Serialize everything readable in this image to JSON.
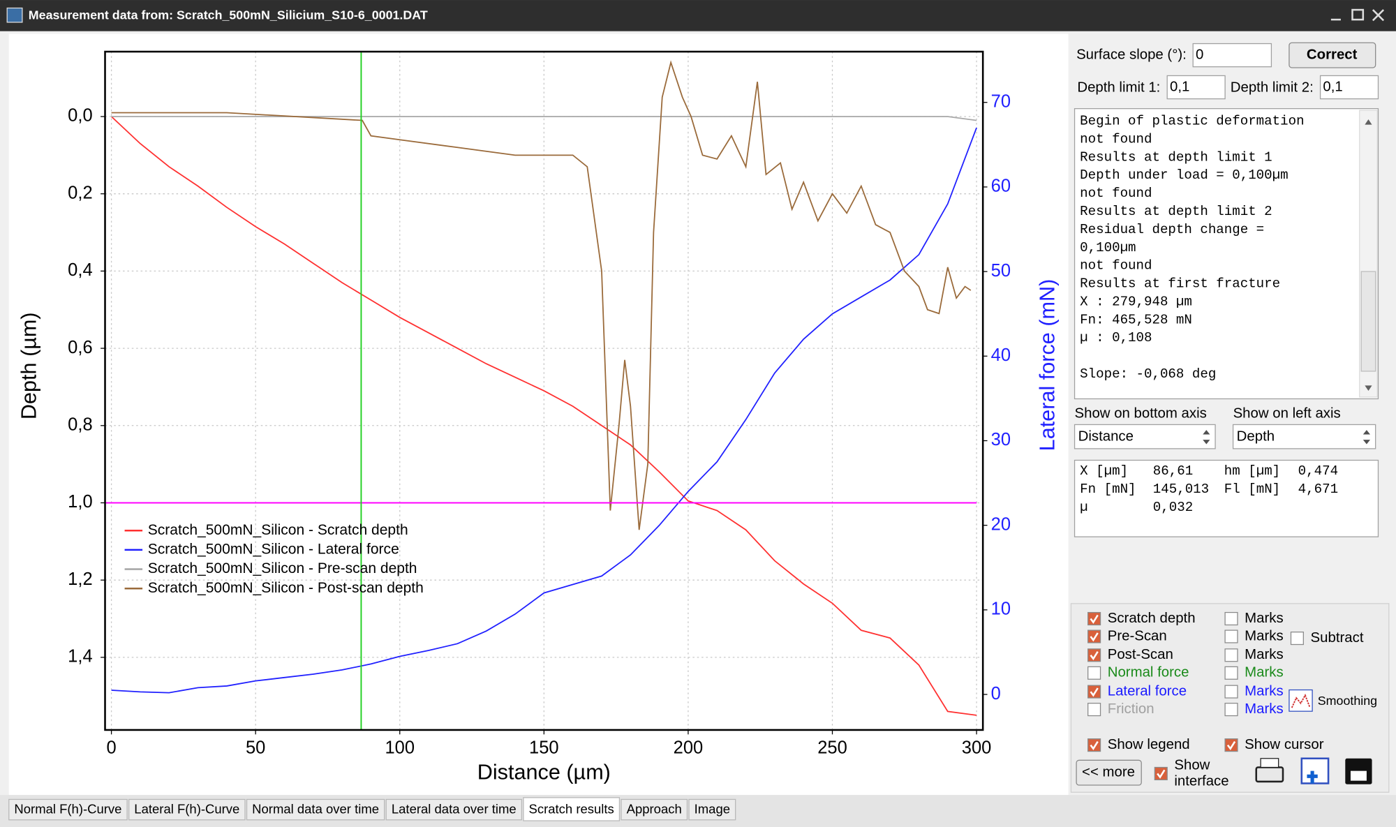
{
  "window": {
    "title": "Measurement data from: Scratch_500mN_Silicium_S10-6_0001.DAT"
  },
  "chart_data": {
    "type": "line",
    "x_label": "Distance (µm)",
    "y_label": "Depth (µm)",
    "y2_label": "Lateral force (mN)",
    "x": [
      0,
      10,
      20,
      30,
      40,
      50,
      60,
      70,
      80,
      90,
      100,
      110,
      120,
      130,
      140,
      150,
      160,
      170,
      180,
      190,
      200,
      210,
      220,
      230,
      240,
      250,
      260,
      270,
      280,
      290,
      300
    ],
    "series": [
      {
        "name": "Scratch_500mN_Silicon - Scratch depth",
        "color": "#ff3030",
        "values": [
          0.0,
          0.07,
          0.13,
          0.18,
          0.235,
          0.285,
          0.33,
          0.38,
          0.43,
          0.475,
          0.52,
          0.56,
          0.6,
          0.64,
          0.675,
          0.71,
          0.75,
          0.8,
          0.85,
          0.92,
          0.995,
          1.02,
          1.07,
          1.15,
          1.21,
          1.26,
          1.33,
          1.35,
          1.42,
          1.54,
          1.55
        ]
      },
      {
        "name": "Scratch_500mN_Silicon - Lateral force",
        "color": "#2020ff",
        "axis": "y2",
        "values": [
          0.5,
          0.3,
          0.2,
          0.8,
          1.0,
          1.6,
          2.0,
          2.4,
          2.9,
          3.6,
          4.5,
          5.2,
          6.0,
          7.5,
          9.5,
          12.0,
          13.0,
          14.0,
          16.5,
          20.0,
          24.0,
          27.5,
          32.5,
          38.0,
          42.0,
          45.0,
          47.0,
          49.0,
          52.0,
          58.0,
          67.0
        ]
      },
      {
        "name": "Scratch_500mN_Silicon - Pre-scan depth",
        "color": "#a8a8a8",
        "values": [
          0,
          0,
          0,
          0,
          0,
          0,
          0,
          0,
          0,
          0,
          0,
          0,
          0,
          0,
          0,
          0,
          0,
          0,
          0,
          0,
          0,
          0,
          0,
          0,
          0,
          0,
          0,
          0,
          0,
          0,
          0.01
        ]
      },
      {
        "name": "Scratch_500mN_Silicon - Post-scan depth",
        "color": "#9a6a3a",
        "x": [
          0,
          40,
          87,
          90,
          100,
          120,
          140,
          160,
          165,
          170,
          173,
          176,
          178,
          180,
          183,
          186,
          188,
          191,
          194,
          198,
          201,
          205,
          210,
          215,
          220,
          224,
          227,
          232,
          236,
          240,
          245,
          250,
          255,
          260,
          265,
          270,
          275,
          280,
          283,
          287,
          290,
          293,
          296,
          298
        ],
        "values": [
          -0.01,
          -0.01,
          0.01,
          0.05,
          0.06,
          0.08,
          0.1,
          0.1,
          0.13,
          0.4,
          1.02,
          0.8,
          0.63,
          0.75,
          1.07,
          0.9,
          0.3,
          -0.05,
          -0.14,
          -0.05,
          0.0,
          0.1,
          0.11,
          0.05,
          0.13,
          -0.09,
          0.15,
          0.12,
          0.24,
          0.17,
          0.27,
          0.2,
          0.25,
          0.18,
          0.28,
          0.3,
          0.4,
          0.44,
          0.5,
          0.51,
          0.39,
          0.47,
          0.44,
          0.45
        ]
      }
    ],
    "xlim": [
      -2.2,
      302.2
    ],
    "xticks": [
      0,
      50,
      100,
      150,
      200,
      250,
      300
    ],
    "ylim": [
      -0.168,
      1.588
    ],
    "y_inverted": true,
    "yticks": [
      {
        "value": 0,
        "label": "0,0"
      },
      {
        "value": 0.2,
        "label": "0,2"
      },
      {
        "value": 0.4,
        "label": "0,4"
      },
      {
        "value": 0.6,
        "label": "0,6"
      },
      {
        "value": 0.8,
        "label": "0,8"
      },
      {
        "value": 1.0,
        "label": "1,0"
      },
      {
        "value": 1.2,
        "label": "1,2"
      },
      {
        "value": 1.4,
        "label": "1,4"
      }
    ],
    "y2lim": [
      -4.2,
      76
    ],
    "y2ticks": [
      0,
      10,
      20,
      30,
      40,
      50,
      60,
      70
    ],
    "y2_color": "#2020ff",
    "grid": true,
    "legend": "lower-left",
    "cursor_x": 86.61,
    "cursor_color": "#20d020",
    "hline": 1.0,
    "hline_color": "#ff00ff"
  },
  "panel": {
    "slope_label": "Surface slope (°):",
    "slope_value": "0",
    "correct_button": "Correct",
    "depth_limit_1_label": "Depth limit 1:",
    "depth_limit_1": "0,1",
    "depth_limit_2_label": "Depth limit 2:",
    "depth_limit_2": "0,1",
    "results": [
      "Begin of plastic deformation",
      "not found",
      "Results at depth limit 1",
      "Depth under load = 0,100µm",
      "not found",
      "Results at depth limit 2",
      "Residual depth change =",
      "0,100µm",
      "not found",
      "Results at first fracture",
      "X :     279,948 µm",
      "Fn:     465,528 mN",
      "µ :     0,108",
      "Slope:  -0,068  deg"
    ],
    "bottom_axis_label": "Show on bottom axis",
    "bottom_axis": "Distance",
    "left_axis_label": "Show on left axis",
    "left_axis": "Depth",
    "cursor_info": [
      [
        "X [µm]",
        "86,61",
        "hm [µm]",
        "0,474"
      ],
      [
        "Fn [mN]",
        "145,013",
        "Fl [mN]",
        "4,671"
      ],
      [
        "µ",
        "0,032"
      ]
    ],
    "series_toggles": [
      {
        "label": "Scratch depth",
        "checked": true,
        "color": "#000000"
      },
      {
        "label": "Pre-Scan",
        "checked": true,
        "color": "#000000"
      },
      {
        "label": "Post-Scan",
        "checked": true,
        "color": "#000000"
      },
      {
        "label": "Normal force",
        "checked": false,
        "color": "#1a8a1a"
      },
      {
        "label": "Lateral force",
        "checked": true,
        "color": "#1a1aff"
      },
      {
        "label": "Friction",
        "checked": false,
        "color": "#a0a0a0"
      }
    ],
    "marks": [
      {
        "label": "Marks",
        "checked": false,
        "color": "#000000"
      },
      {
        "label": "Marks",
        "checked": false,
        "color": "#000000"
      },
      {
        "label": "Marks",
        "checked": false,
        "color": "#000000"
      },
      {
        "label": "Marks",
        "checked": false,
        "color": "#1a8a1a"
      },
      {
        "label": "Marks",
        "checked": false,
        "color": "#1a1aff"
      },
      {
        "label": "Marks",
        "checked": false,
        "color": "#1a1aff"
      }
    ],
    "subtract": {
      "label": "Subtract",
      "checked": false
    },
    "smoothing": "Smoothing",
    "show_legend": {
      "label": "Show legend",
      "checked": true
    },
    "show_cursor": {
      "label": "Show cursor",
      "checked": true
    },
    "more_button": "<< more",
    "show_interface": {
      "label": [
        "Show",
        "interface"
      ],
      "checked": true
    }
  },
  "tabs": {
    "items": [
      "Normal F(h)-Curve",
      "Lateral F(h)-Curve",
      "Normal data over time",
      "Lateral data over time",
      "Scratch results",
      "Approach",
      "Image"
    ],
    "active": 4
  }
}
